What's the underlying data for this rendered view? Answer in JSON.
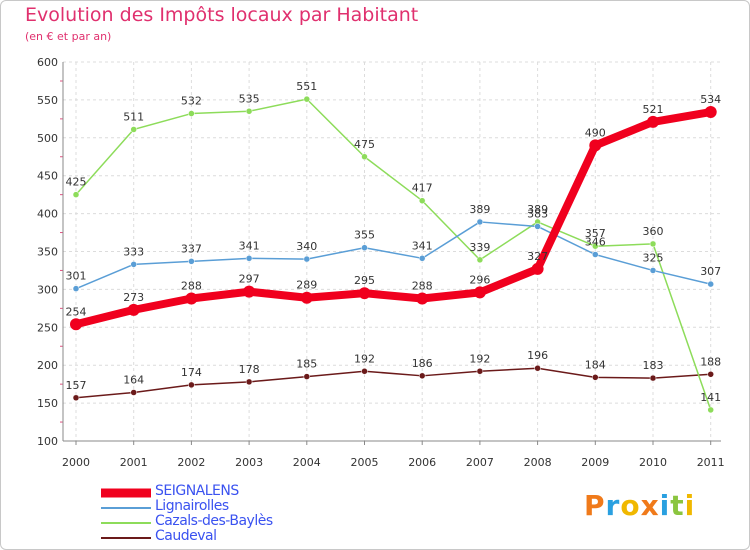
{
  "chart_data": {
    "type": "line",
    "title": "Evolution des Impôts locaux par Habitant",
    "subtitle": "(en € et par an)",
    "xlabel": "",
    "ylabel": "",
    "ylim": [
      100,
      600
    ],
    "yticks": [
      100,
      150,
      200,
      250,
      300,
      350,
      400,
      450,
      500,
      550,
      600
    ],
    "categories": [
      "2000",
      "2001",
      "2002",
      "2003",
      "2004",
      "2005",
      "2006",
      "2007",
      "2008",
      "2009",
      "2010",
      "2011"
    ],
    "grid": true,
    "legend_position": "bottom-left",
    "series": [
      {
        "name": "Caudeval",
        "color": "#6b1a1a",
        "values": [
          157,
          164,
          174,
          178,
          185,
          192,
          186,
          192,
          196,
          184,
          183,
          188
        ]
      },
      {
        "name": "Cazals-des-Baylès",
        "color": "#8ddc5a",
        "values": [
          425,
          511,
          532,
          535,
          551,
          475,
          417,
          339,
          389,
          357,
          360,
          141
        ]
      },
      {
        "name": "Lignairolles",
        "color": "#5a9ed6",
        "values": [
          301,
          333,
          337,
          341,
          340,
          355,
          341,
          389,
          383,
          346,
          325,
          307
        ]
      },
      {
        "name": "SEIGNALENS",
        "color": "#f0001e",
        "values": [
          254,
          273,
          288,
          297,
          289,
          295,
          288,
          296,
          327,
          490,
          521,
          534
        ]
      }
    ],
    "legend_order": [
      "SEIGNALENS",
      "Lignairolles",
      "Cazals-des-Baylès",
      "Caudeval"
    ]
  },
  "logo": {
    "letters": [
      "P",
      "r",
      "o",
      "x",
      "i",
      "t",
      "i"
    ],
    "colors": [
      "#f07a1a",
      "#2aa0e0",
      "#f0b800",
      "#f07a1a",
      "#2aa0e0",
      "#8bc53f",
      "#f0b800"
    ]
  }
}
